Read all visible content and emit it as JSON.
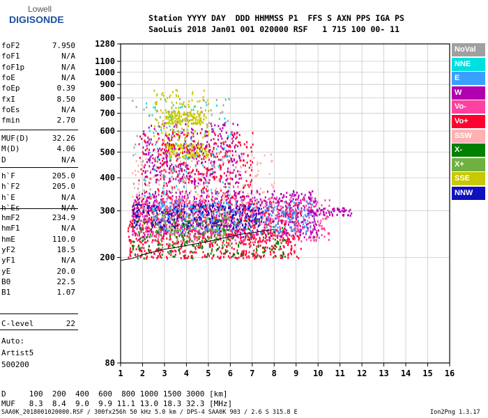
{
  "logo": {
    "line1": "Lowell",
    "line2": "DIGISONDE"
  },
  "header": {
    "line1": "Station YYYY DAY  DDD HHMMSS P1  FFS S AXN PPS IGA PS",
    "line2": "SaoLuis 2018 Jan01 001 020000 RSF   1 715 100 00- 11"
  },
  "params_group1": [
    {
      "name": "foF2",
      "value": "7.950"
    },
    {
      "name": "foF1",
      "value": "N/A"
    },
    {
      "name": "foF1p",
      "value": "N/A"
    },
    {
      "name": "foE",
      "value": "N/A"
    },
    {
      "name": "foEp",
      "value": "0.39"
    },
    {
      "name": "fxI",
      "value": "8.50"
    },
    {
      "name": "foEs",
      "value": "N/A"
    },
    {
      "name": "fmin",
      "value": "2.70"
    }
  ],
  "params_group2": [
    {
      "name": "MUF(D)",
      "value": "32.26"
    },
    {
      "name": "M(D)",
      "value": "4.06"
    },
    {
      "name": "D",
      "value": "N/A"
    }
  ],
  "params_group3": [
    {
      "name": "h`F",
      "value": "205.0"
    },
    {
      "name": "h`F2",
      "value": "205.0"
    },
    {
      "name": "h`E",
      "value": "N/A"
    },
    {
      "name": "h`Es",
      "value": "N/A"
    }
  ],
  "params_group4": [
    {
      "name": "hmF2",
      "value": "234.9"
    },
    {
      "name": "hmF1",
      "value": "N/A"
    },
    {
      "name": "hmE",
      "value": "110.0"
    },
    {
      "name": "yF2",
      "value": "18.5"
    },
    {
      "name": "yF1",
      "value": "N/A"
    },
    {
      "name": "yE",
      "value": "20.0"
    },
    {
      "name": "B0",
      "value": "22.5"
    },
    {
      "name": "B1",
      "value": "1.07"
    }
  ],
  "params_group5": [
    {
      "name": "C-level",
      "value": "22"
    }
  ],
  "autoscaling": [
    "Auto:",
    "Artist5",
    "500200"
  ],
  "bottom_table": {
    "row1": "D     100  200  400  600  800 1000 1500 3000 [km]",
    "row2": "MUF   8.3  8.4  9.0  9.9 11.1 13.0 18.3 32.3 [MHz]"
  },
  "footer": {
    "left": "SAA0K_2018001020000.RSF / 300fx256h 50 kHz 5.0 km / DPS-4 SAA0K 903 / 2.6 S 315.8 E",
    "right": "Ion2Png 1.3.17"
  },
  "legend": [
    {
      "label": "NoVal",
      "color": "#a0a0a0"
    },
    {
      "label": "NNE",
      "color": "#00e0e0"
    },
    {
      "label": "E",
      "color": "#3aa0ff"
    },
    {
      "label": "W",
      "color": "#b000b0"
    },
    {
      "label": "Vo-",
      "color": "#ff40a0"
    },
    {
      "label": "Vo+",
      "color": "#ff0030"
    },
    {
      "label": "SSW",
      "color": "#ffb0b0"
    },
    {
      "label": "X-",
      "color": "#008000"
    },
    {
      "label": "X+",
      "color": "#70b040"
    },
    {
      "label": "SSE",
      "color": "#c8c800"
    },
    {
      "label": "NNW",
      "color": "#1010c0"
    }
  ],
  "chart_data": {
    "type": "scatter",
    "x_ticks": [
      1,
      2,
      3,
      4,
      5,
      6,
      7,
      8,
      9,
      10,
      11,
      12,
      13,
      14,
      15,
      16
    ],
    "y_ticks": [
      80,
      200,
      300,
      400,
      500,
      600,
      700,
      800,
      900,
      1000,
      1100,
      1280
    ],
    "xlim": [
      1,
      16
    ],
    "ylim": [
      80,
      1280
    ],
    "y_scale": "log",
    "grid": true,
    "trace_x": [
      1.0,
      1.5,
      2.0,
      2.5,
      3.0,
      3.5,
      4.0,
      4.5,
      5.0,
      5.5,
      6.0,
      6.5,
      7.0,
      7.5,
      8.0
    ],
    "trace_y": [
      195,
      198,
      205,
      210,
      215,
      218,
      222,
      226,
      230,
      235,
      240,
      245,
      248,
      252,
      255
    ],
    "clusters": [
      {
        "color": "#ff0030",
        "x": [
          1.3,
          9.2
        ],
        "y": [
          200,
          330
        ],
        "n": 900
      },
      {
        "color": "#b000b0",
        "x": [
          1.5,
          10.0
        ],
        "y": [
          240,
          360
        ],
        "n": 700
      },
      {
        "color": "#ff40a0",
        "x": [
          1.5,
          10.5
        ],
        "y": [
          230,
          340
        ],
        "n": 500
      },
      {
        "color": "#3aa0ff",
        "x": [
          2.5,
          9.8
        ],
        "y": [
          250,
          330
        ],
        "n": 300
      },
      {
        "color": "#1010c0",
        "x": [
          1.5,
          7.5
        ],
        "y": [
          260,
          320
        ],
        "n": 250
      },
      {
        "color": "#008000",
        "x": [
          1.5,
          8.5
        ],
        "y": [
          200,
          280
        ],
        "n": 200
      },
      {
        "color": "#70b040",
        "x": [
          2.5,
          6.0
        ],
        "y": [
          220,
          300
        ],
        "n": 120
      },
      {
        "color": "#c8c800",
        "x": [
          3.0,
          5.0
        ],
        "y": [
          480,
          540
        ],
        "n": 160
      },
      {
        "color": "#c8c800",
        "x": [
          3.0,
          4.8
        ],
        "y": [
          640,
          720
        ],
        "n": 140
      },
      {
        "color": "#b000b0",
        "x": [
          2.0,
          6.5
        ],
        "y": [
          380,
          650
        ],
        "n": 350
      },
      {
        "color": "#ff0030",
        "x": [
          1.8,
          7.0
        ],
        "y": [
          330,
          600
        ],
        "n": 300
      },
      {
        "color": "#ffb0b0",
        "x": [
          1.5,
          8.0
        ],
        "y": [
          260,
          500
        ],
        "n": 200
      },
      {
        "color": "#00e0e0",
        "x": [
          2.0,
          6.0
        ],
        "y": [
          300,
          800
        ],
        "n": 100
      },
      {
        "color": "#c8c800",
        "x": [
          2.5,
          5.0
        ],
        "y": [
          550,
          870
        ],
        "n": 110
      },
      {
        "color": "#a0a0a0",
        "x": [
          1.5,
          6.0
        ],
        "y": [
          300,
          800
        ],
        "n": 100
      },
      {
        "color": "#b000b0",
        "x": [
          9.5,
          11.5
        ],
        "y": [
          290,
          310
        ],
        "n": 60
      }
    ]
  }
}
